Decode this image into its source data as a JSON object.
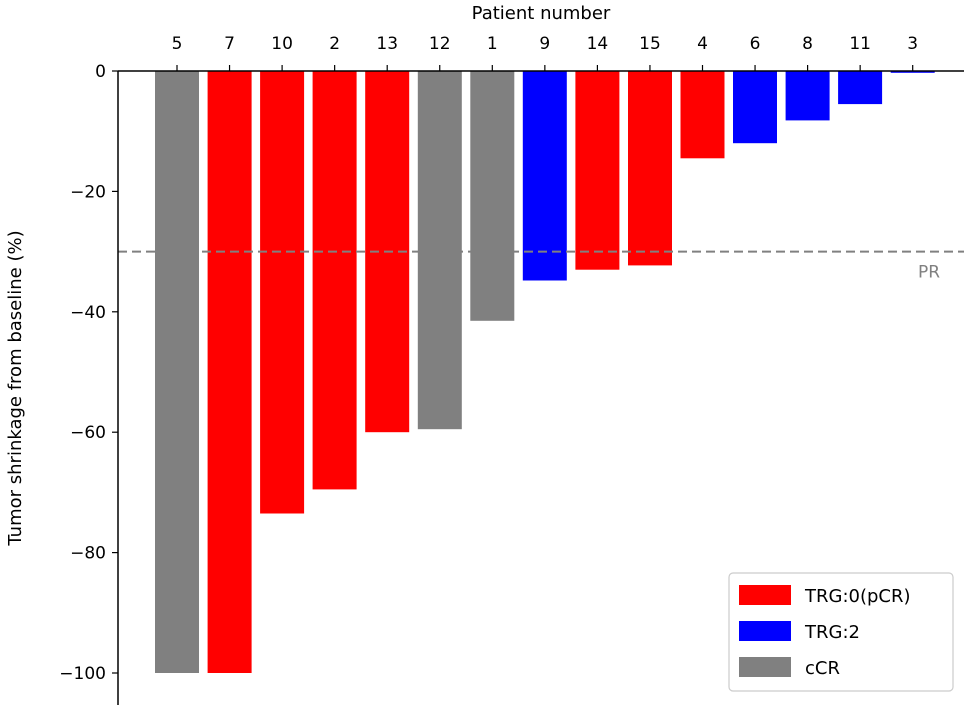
{
  "chart_data": {
    "type": "bar",
    "title": "",
    "xlabel": "Patient number",
    "ylabel": "Tumor shrinkage from baseline (%)",
    "xaxis_position": "top",
    "ylim": [
      -105,
      0
    ],
    "yticks": [
      0,
      -20,
      -40,
      -60,
      -80,
      -100
    ],
    "ytick_labels": [
      "0",
      "−20",
      "−40",
      "−60",
      "−80",
      "−100"
    ],
    "categories": [
      "5",
      "7",
      "10",
      "2",
      "13",
      "12",
      "1",
      "9",
      "14",
      "15",
      "4",
      "6",
      "8",
      "11",
      "3"
    ],
    "values": [
      -100,
      -100,
      -73.5,
      -69.5,
      -60,
      -59.5,
      -41.5,
      -34.8,
      -33,
      -32.3,
      -14.5,
      -12,
      -8.2,
      -5.5,
      -0.3
    ],
    "groups": [
      "cCR",
      "TRG:0(pCR)",
      "TRG:0(pCR)",
      "TRG:0(pCR)",
      "TRG:0(pCR)",
      "cCR",
      "cCR",
      "TRG:2",
      "TRG:0(pCR)",
      "TRG:0(pCR)",
      "TRG:0(pCR)",
      "TRG:2",
      "TRG:2",
      "TRG:2",
      "TRG:2"
    ],
    "reference_line": {
      "value": -30,
      "label": "PR",
      "style": "dashed",
      "color": "#808080"
    },
    "legend": {
      "position": "lower-right",
      "entries": [
        {
          "label": "TRG:0(pCR)",
          "color": "#ff0000"
        },
        {
          "label": "TRG:2",
          "color": "#0000ff"
        },
        {
          "label": "cCR",
          "color": "#808080"
        }
      ]
    },
    "colors": {
      "TRG:0(pCR)": "#ff0000",
      "TRG:2": "#0000ff",
      "cCR": "#808080"
    }
  }
}
